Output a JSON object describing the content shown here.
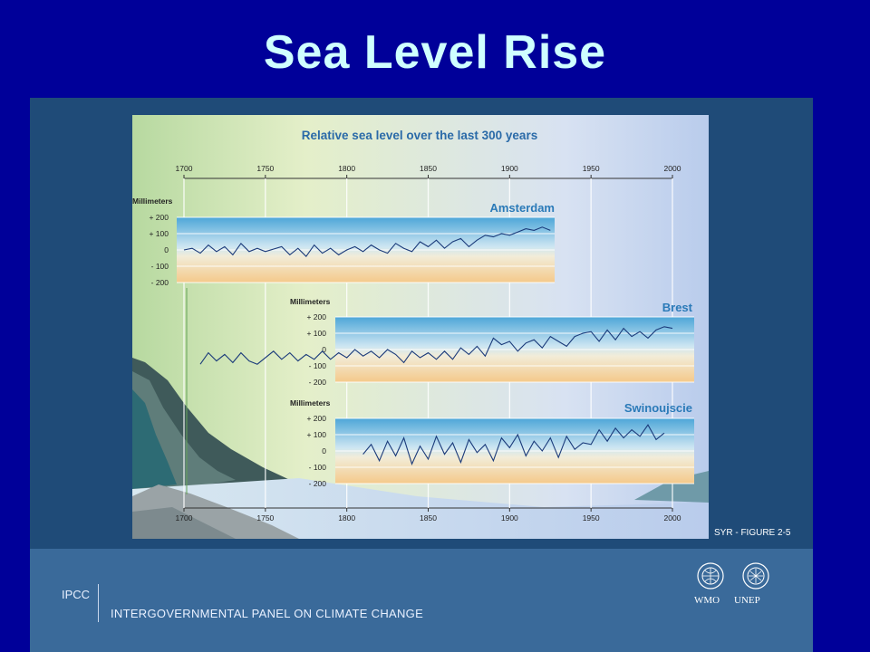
{
  "slide_title": "Sea Level Rise",
  "figure_id": "SYR - FIGURE 2-5",
  "footer": {
    "short_name": "IPCC",
    "org_name": "INTERGOVERNMENTAL PANEL ON CLIMATE CHANGE",
    "logo_left": "WMO",
    "logo_right": "UNEP"
  },
  "colors": {
    "slide_bg": "#000099",
    "title": "#cfffff",
    "series_line": "#1a3a7a",
    "panel_title": "#2a7ab8"
  },
  "chart_data": {
    "type": "line",
    "title": "Relative sea level over the last 300 years",
    "x_ticks": [
      "1700",
      "1750",
      "1800",
      "1850",
      "1900",
      "1950",
      "2000"
    ],
    "xlim": [
      1700,
      2000
    ],
    "ylim": [
      -200,
      200
    ],
    "y_ticks": [
      "+ 200",
      "+ 100",
      "0",
      "- 100",
      "- 200"
    ],
    "ylabel": "Millimeters",
    "grid": true,
    "panels": [
      {
        "name": "Amsterdam",
        "x": [
          1700,
          1705,
          1710,
          1715,
          1720,
          1725,
          1730,
          1735,
          1740,
          1745,
          1750,
          1760,
          1765,
          1770,
          1775,
          1780,
          1785,
          1790,
          1795,
          1800,
          1805,
          1810,
          1815,
          1820,
          1825,
          1830,
          1835,
          1840,
          1845,
          1850,
          1855,
          1860,
          1865,
          1870,
          1875,
          1880,
          1885,
          1890,
          1895,
          1900,
          1905,
          1910,
          1915,
          1920,
          1925
        ],
        "y": [
          0,
          10,
          -20,
          30,
          -10,
          20,
          -30,
          40,
          -10,
          10,
          -10,
          20,
          -30,
          10,
          -40,
          30,
          -20,
          10,
          -30,
          0,
          20,
          -10,
          30,
          0,
          -20,
          40,
          10,
          -10,
          50,
          20,
          60,
          10,
          50,
          70,
          20,
          60,
          90,
          80,
          100,
          90,
          110,
          130,
          120,
          140,
          120
        ]
      },
      {
        "name": "Brest",
        "x": [
          1710,
          1715,
          1720,
          1725,
          1730,
          1735,
          1740,
          1745,
          1755,
          1760,
          1765,
          1770,
          1775,
          1780,
          1785,
          1790,
          1795,
          1800,
          1805,
          1810,
          1815,
          1820,
          1825,
          1830,
          1835,
          1840,
          1845,
          1850,
          1855,
          1860,
          1865,
          1870,
          1875,
          1880,
          1885,
          1890,
          1895,
          1900,
          1905,
          1910,
          1915,
          1920,
          1925,
          1930,
          1935,
          1940,
          1945,
          1950,
          1955,
          1960,
          1965,
          1970,
          1975,
          1980,
          1985,
          1990,
          1995,
          2000
        ],
        "y": [
          -90,
          -20,
          -70,
          -30,
          -80,
          -20,
          -70,
          -90,
          -10,
          -60,
          -20,
          -70,
          -30,
          -60,
          -10,
          -60,
          -20,
          -50,
          0,
          -40,
          -10,
          -50,
          0,
          -30,
          -80,
          -10,
          -50,
          -20,
          -60,
          -10,
          -60,
          10,
          -30,
          20,
          -40,
          70,
          30,
          50,
          -10,
          40,
          60,
          10,
          80,
          50,
          20,
          80,
          100,
          110,
          50,
          120,
          60,
          130,
          80,
          110,
          70,
          120,
          140,
          130
        ]
      },
      {
        "name": "Swinoujscie",
        "x": [
          1810,
          1815,
          1820,
          1825,
          1830,
          1835,
          1840,
          1845,
          1850,
          1855,
          1860,
          1865,
          1870,
          1875,
          1880,
          1885,
          1890,
          1895,
          1900,
          1905,
          1910,
          1915,
          1920,
          1925,
          1930,
          1935,
          1940,
          1945,
          1950,
          1955,
          1960,
          1965,
          1970,
          1975,
          1980,
          1985,
          1990,
          1995
        ],
        "y": [
          -20,
          40,
          -60,
          60,
          -30,
          80,
          -80,
          30,
          -50,
          90,
          -20,
          50,
          -70,
          70,
          -10,
          40,
          -60,
          80,
          20,
          100,
          -30,
          60,
          0,
          80,
          -40,
          90,
          10,
          50,
          40,
          130,
          60,
          140,
          80,
          130,
          90,
          160,
          70,
          110
        ]
      }
    ]
  }
}
